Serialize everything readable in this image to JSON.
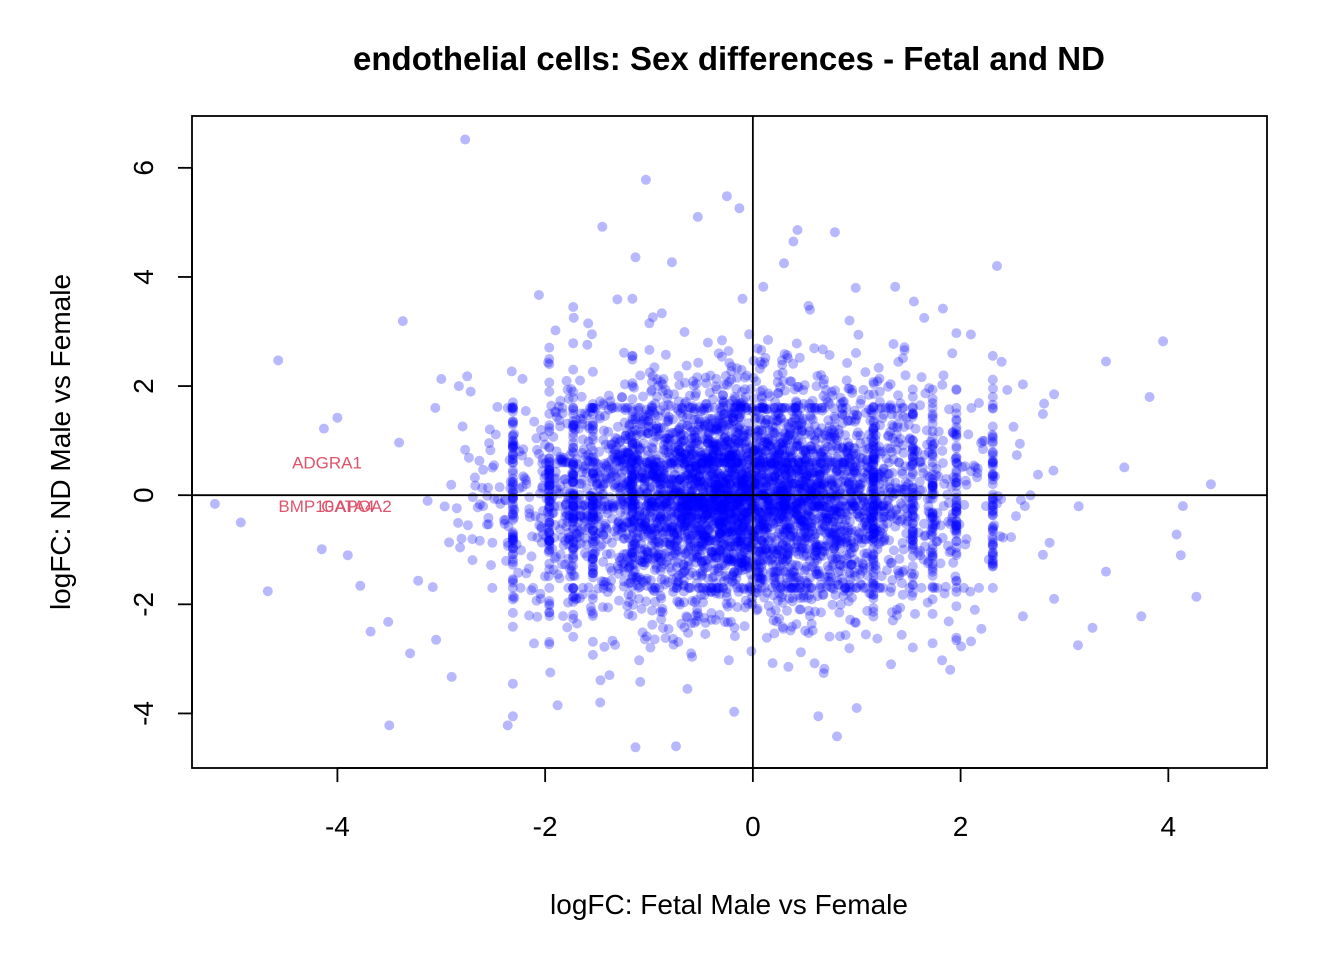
{
  "chart_data": {
    "type": "scatter",
    "title": "endothelial cells: Sex differences - Fetal and ND",
    "xlabel": "logFC: Fetal Male vs Female",
    "ylabel": "logFC: ND Male vs Female",
    "xlim": [
      -5.4,
      4.95
    ],
    "ylim": [
      -5.0,
      6.95
    ],
    "x_ticks": [
      -4,
      -2,
      0,
      2,
      4
    ],
    "y_ticks": [
      -4,
      -2,
      0,
      2,
      4,
      6
    ],
    "x_tick_labels": [
      "-4",
      "-2",
      "0",
      "2",
      "4"
    ],
    "y_tick_labels": [
      "-4",
      "-2",
      "0",
      "2",
      "4",
      "6"
    ],
    "reference_lines": {
      "x": 0,
      "y": 0
    },
    "point_color": "#0000ff",
    "point_opacity": 0.28,
    "label_color": "#df536b",
    "cloud": {
      "n_points": 5200,
      "center": [
        -0.15,
        0.0
      ],
      "sd": [
        0.95,
        1.05
      ],
      "description": "dense cloud of thousands of genes; values read approximately"
    },
    "outliers": [
      [
        -2.77,
        6.52
      ],
      [
        -1.03,
        5.78
      ],
      [
        -0.25,
        5.48
      ],
      [
        -0.13,
        5.26
      ],
      [
        -0.53,
        5.1
      ],
      [
        0.43,
        4.86
      ],
      [
        0.79,
        4.82
      ],
      [
        -1.45,
        4.92
      ],
      [
        0.39,
        4.65
      ],
      [
        0.3,
        4.25
      ],
      [
        2.35,
        4.2
      ],
      [
        -0.78,
        4.27
      ],
      [
        -1.13,
        4.36
      ],
      [
        1.37,
        3.82
      ],
      [
        0.99,
        3.8
      ],
      [
        0.1,
        3.82
      ],
      [
        -2.06,
        3.67
      ],
      [
        -3.37,
        3.19
      ],
      [
        -4.57,
        2.47
      ],
      [
        -4.0,
        1.42
      ],
      [
        -4.13,
        1.22
      ],
      [
        3.95,
        2.82
      ],
      [
        3.82,
        1.8
      ],
      [
        3.4,
        2.45
      ],
      [
        4.41,
        0.2
      ],
      [
        4.14,
        -0.2
      ],
      [
        4.08,
        -0.72
      ],
      [
        4.12,
        -1.1
      ],
      [
        4.27,
        -1.86
      ],
      [
        3.74,
        -2.22
      ],
      [
        3.27,
        -2.43
      ],
      [
        3.13,
        -2.75
      ],
      [
        -5.18,
        -0.16
      ],
      [
        -4.93,
        -0.5
      ],
      [
        -4.67,
        -1.76
      ],
      [
        -4.15,
        -0.99
      ],
      [
        -3.9,
        -1.1
      ],
      [
        -3.78,
        -1.66
      ],
      [
        -3.68,
        -2.5
      ],
      [
        -3.5,
        -4.22
      ],
      [
        -2.36,
        -4.22
      ],
      [
        -1.88,
        -3.85
      ],
      [
        -1.13,
        -4.62
      ],
      [
        -0.74,
        -4.6
      ],
      [
        0.63,
        -4.05
      ],
      [
        0.81,
        -4.42
      ],
      [
        1.0,
        -3.9
      ],
      [
        -0.18,
        -3.97
      ],
      [
        -0.63,
        -3.55
      ],
      [
        1.33,
        -3.1
      ],
      [
        2.1,
        -2.68
      ],
      [
        2.6,
        -2.22
      ],
      [
        2.9,
        -1.9
      ],
      [
        3.4,
        -1.4
      ],
      [
        -3.3,
        -2.9
      ],
      [
        -3.05,
        -2.65
      ],
      [
        -2.9,
        -3.33
      ],
      [
        -1.95,
        -3.25
      ],
      [
        1.9,
        -3.2
      ],
      [
        2.2,
        -2.45
      ],
      [
        -3.0,
        2.13
      ],
      [
        -2.83,
        2.0
      ],
      [
        -2.75,
        2.18
      ],
      [
        2.6,
        2.03
      ],
      [
        2.9,
        1.85
      ],
      [
        1.92,
        2.6
      ],
      [
        1.65,
        3.25
      ],
      [
        1.55,
        3.55
      ],
      [
        1.83,
        3.42
      ],
      [
        -1.73,
        3.45
      ],
      [
        -1.9,
        3.02
      ],
      [
        -1.55,
        2.95
      ],
      [
        0.93,
        3.2
      ],
      [
        0.55,
        3.4
      ],
      [
        -0.1,
        3.6
      ]
    ],
    "gene_labels": [
      {
        "text": "ADGRA1",
        "x": -4.1,
        "y": 0.6
      },
      {
        "text": "BMP10",
        "x": -4.3,
        "y": -0.2
      },
      {
        "text": "GATA4",
        "x": -3.9,
        "y": -0.2
      },
      {
        "text": "APOA2",
        "x": -3.75,
        "y": -0.2
      }
    ]
  }
}
